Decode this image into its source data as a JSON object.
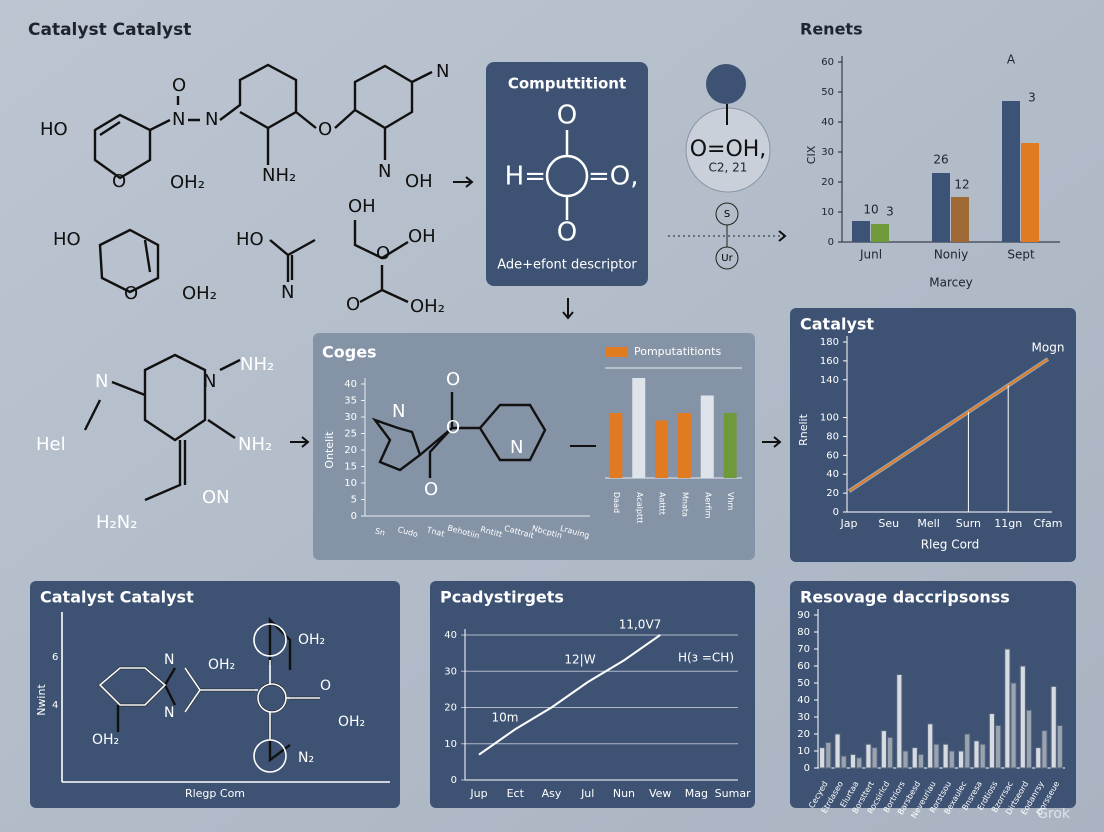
{
  "header": {
    "title": "Catalyst Catalyst",
    "watermark": "Grok"
  },
  "molecules": {
    "top": [
      "HO",
      "O",
      "N",
      "N",
      "O",
      "OH₂",
      "NH₂",
      "O",
      "N",
      "N",
      "OH",
      "HO",
      "O",
      "OH₂",
      "HO",
      "N",
      "OH",
      "OH",
      "O",
      "O",
      "OH₂",
      "N",
      "N",
      "NH₂",
      "Hel",
      "NH₂",
      "ON",
      "H₂N₂"
    ],
    "middle": [
      "N",
      "O",
      "O",
      "O",
      "N"
    ],
    "bottom": [
      "N",
      "OH₂",
      "OH₂",
      "N",
      "O",
      "OH₂",
      "OH₂",
      "N₂"
    ]
  },
  "computation_panel": {
    "title": "Computtitiont",
    "formula_left": "H=",
    "formula_right": "=O,",
    "atom_top": "O",
    "atom_bottom": "O",
    "caption": "Ade+efont descriptor"
  },
  "node": {
    "label": "O=OH,",
    "sublabel": "C2, 21",
    "small_1": "S",
    "small_2": "Ur"
  },
  "bottom_left_panel": {
    "title": "Catalyst Catalyst",
    "ylabel": "Nwint",
    "xlabel": "Rlegp Com",
    "yticks": [
      "6",
      "4"
    ]
  },
  "chart_data": [
    {
      "type": "bar",
      "title": "Renets",
      "xlabel": "Marcey",
      "ylabel": "CIX",
      "categories": [
        "Junl",
        "Noniy",
        "Sept"
      ],
      "ylim": [
        0,
        60
      ],
      "yticks": [
        0,
        10,
        20,
        30,
        40,
        50,
        60
      ],
      "series": [
        {
          "color": "#3d5277",
          "values": [
            7,
            23,
            47
          ]
        },
        {
          "colors": [
            "#6f9a3a",
            "#a06a36",
            "#e07b22"
          ],
          "values": [
            6,
            15,
            33
          ]
        }
      ],
      "annotations": [
        "10",
        "3",
        "26",
        "12",
        "A",
        "3"
      ]
    },
    {
      "type": "bar",
      "title": "Coges",
      "ylabel": "Ontelit",
      "axis_categories": [
        "Sn",
        "Cudo",
        "Tnat",
        "Behotiin",
        "Rntitt",
        "Cattrait",
        "Nbcptin",
        "Lrauing"
      ],
      "ylim": [
        0,
        40
      ],
      "yticks": [
        0,
        5,
        10,
        15,
        20,
        25,
        30,
        35,
        40
      ],
      "categories": [
        "Daad",
        "Acalpttt",
        "Aatttt",
        "Mnata",
        "Aerfim",
        "Vhm"
      ],
      "series": [
        {
          "name": "Pomputatitionts",
          "color": "#e07b22",
          "colors": [
            "#e07b22",
            "#dfe3ea",
            "#e07b22",
            "#e07b22",
            "#dfe3ea",
            "#6f9a3a"
          ],
          "values": [
            26,
            40,
            23,
            26,
            33,
            26
          ]
        }
      ]
    },
    {
      "type": "line",
      "title": "Catalyst",
      "xlabel": "Rleg Cord",
      "ylabel": "Rnelit",
      "categories": [
        "Jap",
        "Seu",
        "Mell",
        "Surn",
        "11gn",
        "Cfam"
      ],
      "ylim": [
        0,
        180
      ],
      "yticks": [
        0,
        20,
        40,
        60,
        80,
        100,
        140,
        160,
        180
      ],
      "series": [
        {
          "color": "#e07b22",
          "values": [
            22,
            50,
            78,
            106,
            134,
            162
          ]
        }
      ],
      "annotations": [
        "Mogn"
      ]
    },
    {
      "type": "line",
      "title": "Pcadystirgets",
      "categories": [
        "Jup",
        "Ect",
        "Asy",
        "Jul",
        "Nun",
        "Vew",
        "Mag",
        "Sumar"
      ],
      "ylim": [
        0,
        40
      ],
      "yticks": [
        0,
        10,
        20,
        30,
        40
      ],
      "series": [
        {
          "color": "#ffffff",
          "values": [
            7,
            14,
            20,
            27,
            33,
            40,
            null,
            null
          ]
        }
      ],
      "annotations": [
        "11,0V7",
        "12|W",
        "10m",
        "H(з =CH)"
      ]
    },
    {
      "type": "bar",
      "title": "Resovage daccripsonss",
      "categories": [
        "Cecyed",
        "Etrdaseo",
        "Elurtaa",
        "Borsttert",
        "Rocsirlcd",
        "Bortriors",
        "Barsbesd",
        "Neveuriau",
        "Rorstsou",
        "Bexaulec",
        "Bnsresa",
        "Erdtioss",
        "Bzorrsac",
        "Dirtseord",
        "Eodanrsy",
        "Dorsseue"
      ],
      "ylim": [
        0,
        90
      ],
      "yticks": [
        0,
        10,
        20,
        30,
        40,
        50,
        60,
        70,
        80,
        90
      ],
      "series": [
        {
          "color": "#d7dbe2",
          "values": [
            12,
            20,
            8,
            14,
            22,
            55,
            12,
            26,
            14,
            10,
            16,
            32,
            70,
            60,
            12,
            48
          ]
        },
        {
          "color": "#9aa3b0",
          "values": [
            15,
            7,
            6,
            12,
            18,
            10,
            8,
            14,
            10,
            20,
            14,
            25,
            50,
            34,
            22,
            25
          ]
        }
      ]
    }
  ]
}
